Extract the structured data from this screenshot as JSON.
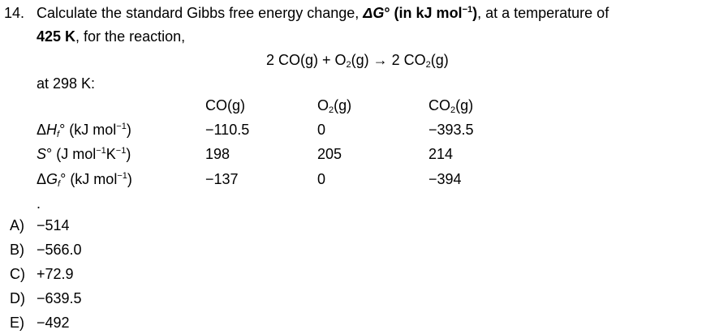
{
  "question": {
    "number": "14.",
    "line1": [
      "Calculate the standard Gibbs free energy change, ",
      "ΔG",
      "°",
      " (in kJ mol",
      "−1",
      ")",
      ", at a temperature of"
    ],
    "line2": [
      "425 K",
      ", for the reaction,"
    ],
    "reaction": [
      "2 CO(g) + O",
      "2",
      "(g) → 2 CO",
      "2",
      "(g)"
    ],
    "condition": "at 298 K:"
  },
  "table": {
    "header": [
      [
        "CO(g)"
      ],
      [
        "O",
        "2",
        "(g)"
      ],
      [
        "CO",
        "2",
        "(g)"
      ]
    ],
    "rows": [
      {
        "label": [
          "Δ",
          "H",
          "f",
          "°",
          " (kJ mol",
          "−1",
          ")"
        ],
        "cells": [
          "−110.5",
          "0",
          "−393.5"
        ]
      },
      {
        "label": [
          "S",
          "°",
          " (J mol",
          "−1",
          "K",
          "−1",
          ")"
        ],
        "cells": [
          "198",
          "205",
          "214"
        ]
      },
      {
        "label": [
          "Δ",
          "G",
          "f",
          "°",
          " (kJ mol",
          "−1",
          ")"
        ],
        "cells": [
          "−137",
          "0",
          "−394"
        ]
      }
    ]
  },
  "dot": ".",
  "options": [
    {
      "letter": "A)",
      "text": "−514"
    },
    {
      "letter": "B)",
      "text": "−566.0"
    },
    {
      "letter": "C)",
      "text": "+72.9"
    },
    {
      "letter": "D)",
      "text": "−639.5"
    },
    {
      "letter": "E)",
      "text": "−492"
    }
  ]
}
